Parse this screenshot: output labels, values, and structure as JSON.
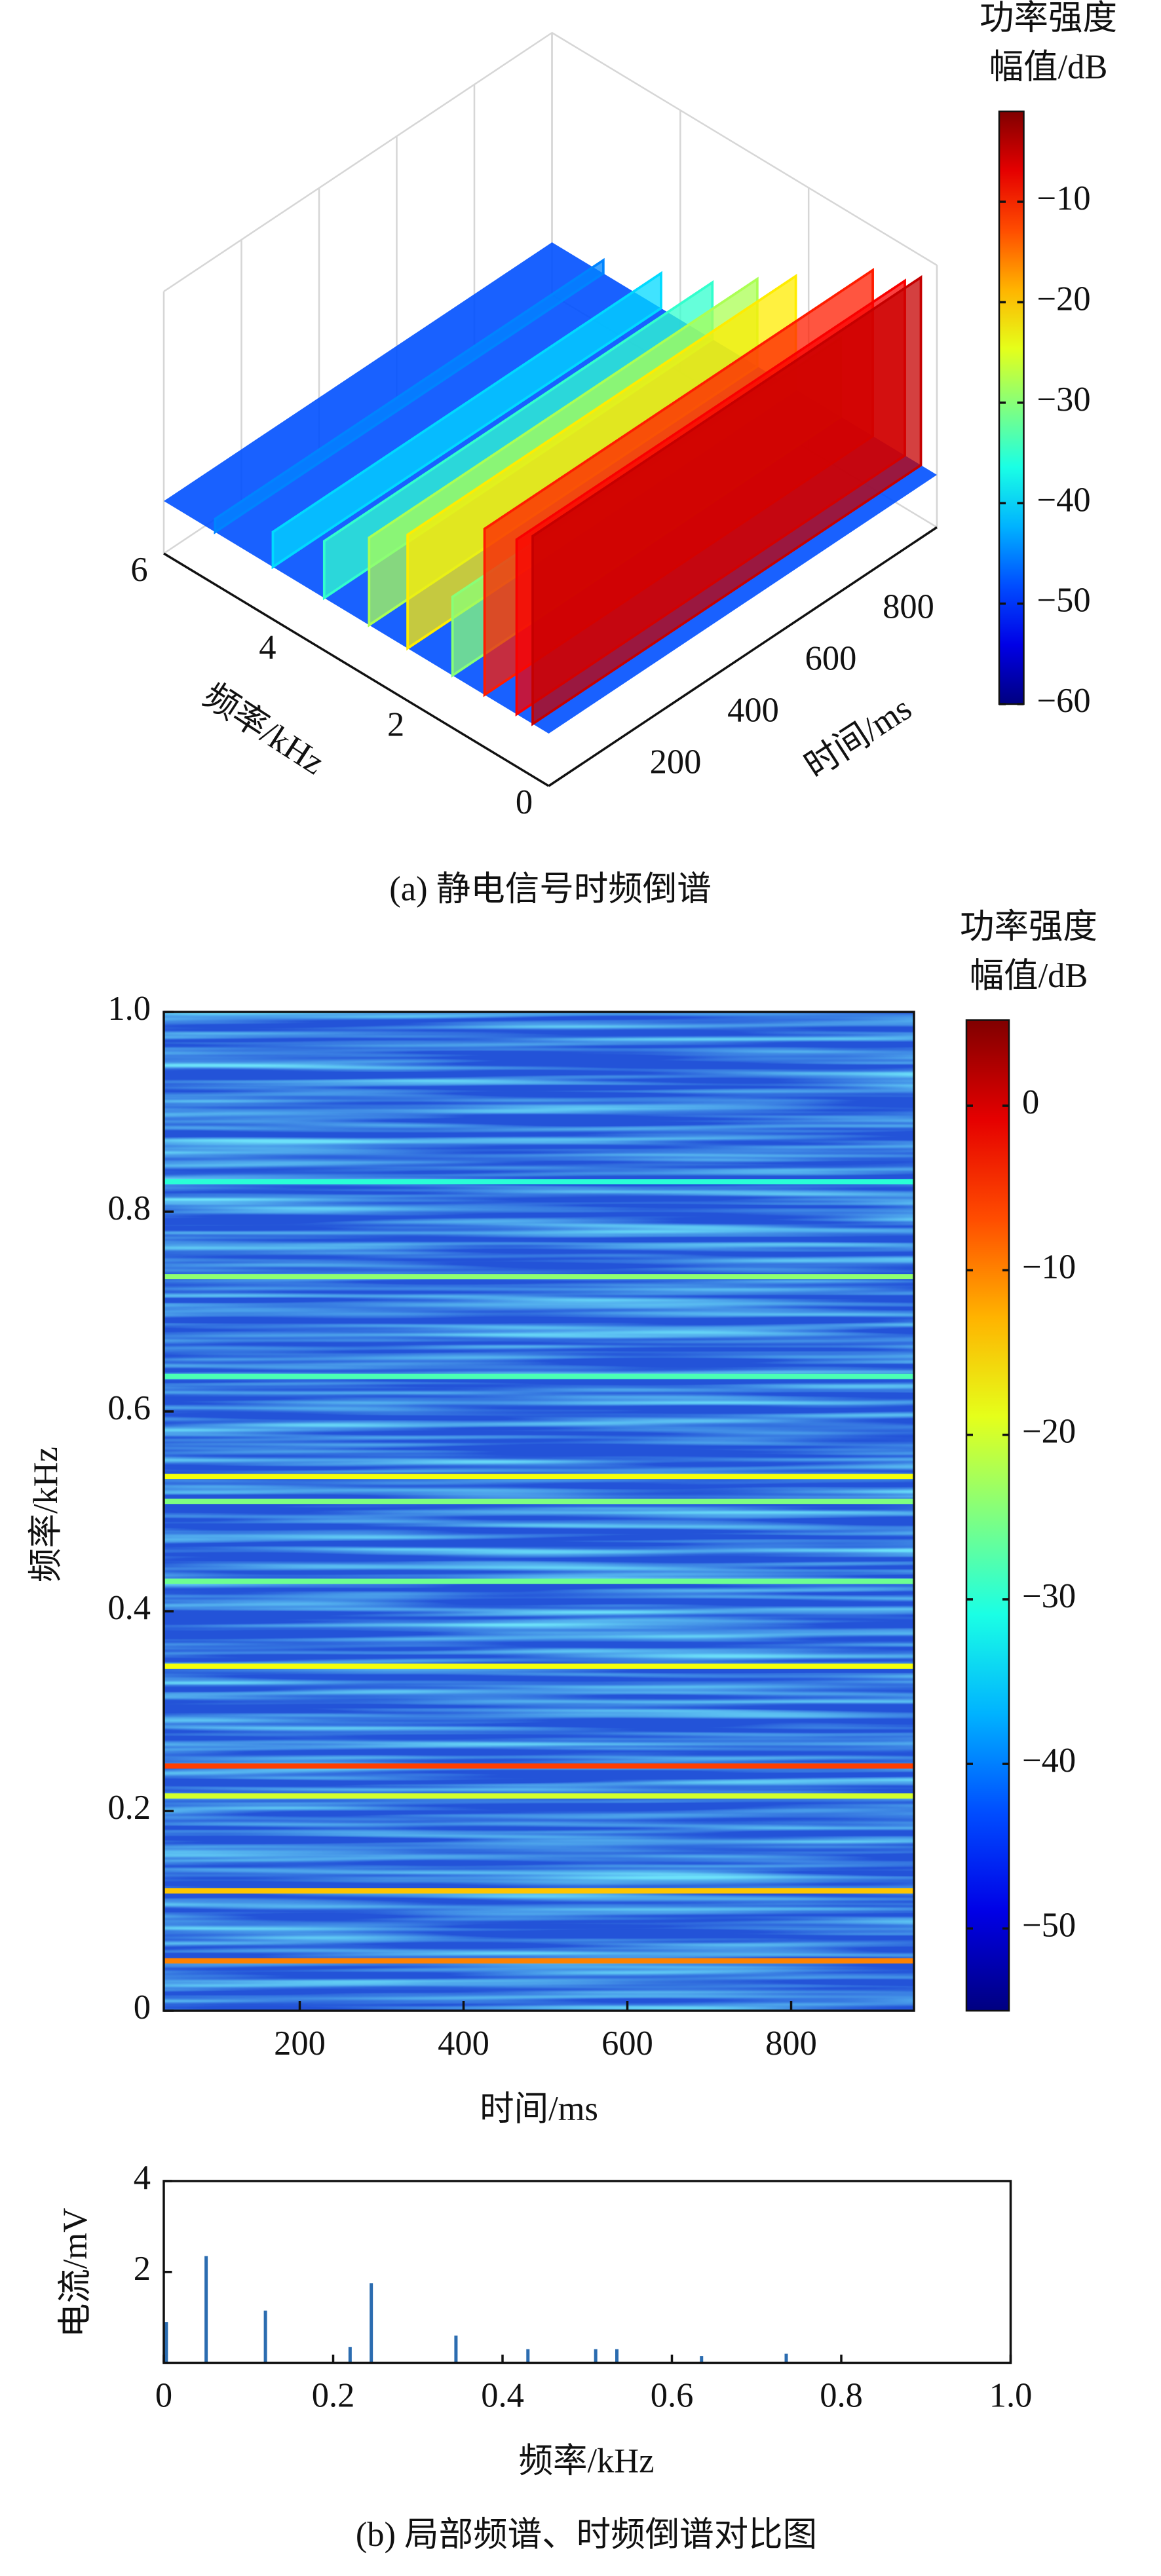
{
  "chart_data": [
    {
      "type": "surface",
      "caption": "(a) 静电信号时频倒谱",
      "xlabel": "时间/ms",
      "ylabel": "频率/kHz",
      "xlim": [
        0,
        1000
      ],
      "xticks": [
        200,
        400,
        600,
        800
      ],
      "ylim": [
        0,
        6
      ],
      "yticks": [
        0,
        2,
        4,
        6
      ],
      "zlim": [
        -60,
        0
      ],
      "base": -48,
      "ridges": {
        "frequency": [
          0.25,
          0.5,
          1.0,
          1.5,
          2.2,
          2.8,
          3.5,
          4.3,
          5.2
        ],
        "values": [
          -5,
          -8,
          -10,
          -30,
          -22,
          -28,
          -35,
          -40,
          -45
        ]
      },
      "colorbar": {
        "title": [
          "功率强度",
          "幅值/dB"
        ],
        "lim": [
          -60,
          -1
        ],
        "ticks": [
          {
            "value": -10,
            "label": "−10"
          },
          {
            "value": -20,
            "label": "−20"
          },
          {
            "value": -30,
            "label": "−30"
          },
          {
            "value": -40,
            "label": "−40"
          },
          {
            "value": -50,
            "label": "−50"
          },
          {
            "value": -60,
            "label": "−60"
          }
        ]
      }
    },
    {
      "type": "heatmap",
      "xlabel": "时间/ms",
      "ylabel": "频率/kHz",
      "xlim": [
        34,
        950
      ],
      "xticks": [
        200,
        400,
        600,
        800
      ],
      "ylim": [
        0,
        1
      ],
      "yticks": [
        0,
        0.2,
        0.4,
        0.6,
        0.8,
        {
          "value": 1,
          "label": "1.0"
        }
      ],
      "bands": {
        "frequency": [
          0.05,
          0.12,
          0.215,
          0.245,
          0.345,
          0.43,
          0.51,
          0.535,
          0.635,
          0.735,
          0.83
        ],
        "values": [
          -10,
          -14,
          -20,
          -6,
          -18,
          -26,
          -25,
          -18,
          -28,
          -24,
          -30
        ]
      },
      "colorbar": {
        "title": [
          "功率强度",
          "幅值/dB"
        ],
        "lim": [
          -55,
          5.2
        ],
        "ticks": [
          0,
          {
            "value": -10,
            "label": "−10"
          },
          {
            "value": -20,
            "label": "−20"
          },
          {
            "value": -30,
            "label": "−30"
          },
          {
            "value": -40,
            "label": "−40"
          },
          {
            "value": -50,
            "label": "−50"
          }
        ]
      }
    },
    {
      "type": "stem",
      "caption": "(b) 局部频谱、时频倒谱对比图",
      "xlabel": "频率/kHz",
      "ylabel": "电流/mV",
      "color": "#2b6cb0",
      "xlim": [
        0,
        1
      ],
      "xticks": [
        0,
        0.2,
        0.4,
        0.6,
        0.8,
        {
          "value": 1,
          "label": "1.0"
        }
      ],
      "ylim": [
        0,
        4
      ],
      "yticks": [
        2,
        4
      ],
      "x": [
        0.003,
        0.05,
        0.12,
        0.22,
        0.245,
        0.345,
        0.43,
        0.51,
        0.535,
        0.635,
        0.735
      ],
      "values": [
        0.9,
        2.35,
        1.15,
        0.35,
        1.75,
        0.6,
        0.3,
        0.3,
        0.3,
        0.15,
        0.2
      ]
    }
  ]
}
